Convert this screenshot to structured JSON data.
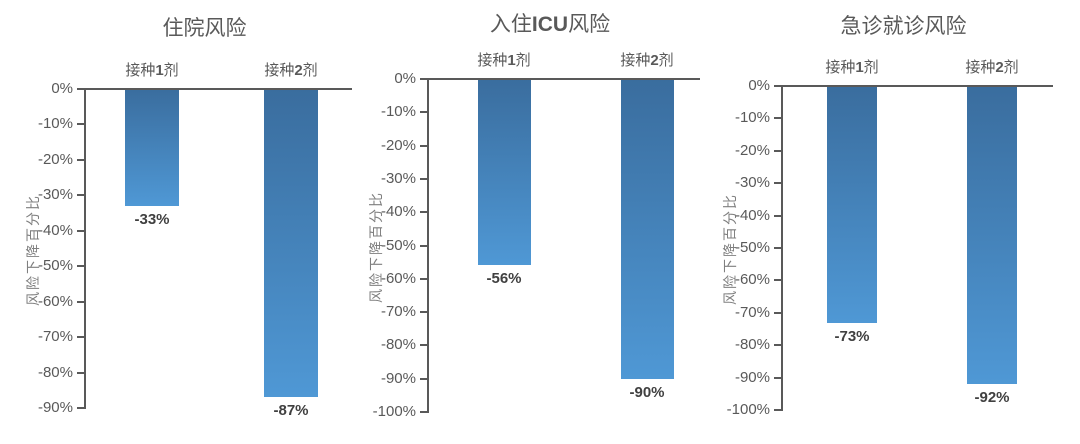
{
  "figure": {
    "background": "#ffffff",
    "description_colors": {
      "bar_gradient_top": "#3a6d9e",
      "bar_gradient_bottom": "#4f98d5",
      "axis_line": "#595959",
      "tick_label": "#595959",
      "title_text": "#595959",
      "category_label": "#595959",
      "data_label": "#404040",
      "axis_title": "#7f7f7f"
    }
  },
  "chart_data": [
    {
      "type": "bar",
      "title": "住院风险",
      "categories": [
        "接种1剂",
        "接种2剂"
      ],
      "values": [
        -33,
        -87
      ],
      "data_labels": [
        "-33%",
        "-87%"
      ],
      "xlabel": "",
      "ylabel": "风险下降百分比",
      "ylim": [
        0,
        -90
      ],
      "yticks": [
        "0%",
        "-10%",
        "-20%",
        "-30%",
        "-40%",
        "-50%",
        "-60%",
        "-70%",
        "-80%",
        "-90%"
      ],
      "grid": "off",
      "legend": "none"
    },
    {
      "type": "bar",
      "title": "入住ICU风险",
      "categories": [
        "接种1剂",
        "接种2剂"
      ],
      "values": [
        -56,
        -90
      ],
      "data_labels": [
        "-56%",
        "-90%"
      ],
      "xlabel": "",
      "ylabel": "风险下降百分比",
      "ylim": [
        0,
        -100
      ],
      "yticks": [
        "0%",
        "-10%",
        "-20%",
        "-30%",
        "-40%",
        "-50%",
        "-60%",
        "-70%",
        "-80%",
        "-90%",
        "-100%"
      ],
      "grid": "off",
      "legend": "none"
    },
    {
      "type": "bar",
      "title": "急诊就诊风险",
      "categories": [
        "接种1剂",
        "接种2剂"
      ],
      "values": [
        -73,
        -92
      ],
      "data_labels": [
        "-73%",
        "-92%"
      ],
      "xlabel": "",
      "ylabel": "风险下降百分比",
      "ylim": [
        0,
        -100
      ],
      "yticks": [
        "0%",
        "-10%",
        "-20%",
        "-30%",
        "-40%",
        "-50%",
        "-60%",
        "-70%",
        "-80%",
        "-90%",
        "-100%"
      ],
      "grid": "off",
      "legend": "none"
    }
  ]
}
